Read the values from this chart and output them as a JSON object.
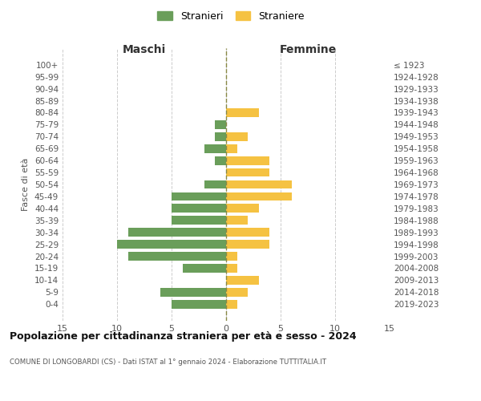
{
  "age_groups": [
    "100+",
    "95-99",
    "90-94",
    "85-89",
    "80-84",
    "75-79",
    "70-74",
    "65-69",
    "60-64",
    "55-59",
    "50-54",
    "45-49",
    "40-44",
    "35-39",
    "30-34",
    "25-29",
    "20-24",
    "15-19",
    "10-14",
    "5-9",
    "0-4"
  ],
  "birth_years": [
    "≤ 1923",
    "1924-1928",
    "1929-1933",
    "1934-1938",
    "1939-1943",
    "1944-1948",
    "1949-1953",
    "1954-1958",
    "1959-1963",
    "1964-1968",
    "1969-1973",
    "1974-1978",
    "1979-1983",
    "1984-1988",
    "1989-1993",
    "1994-1998",
    "1999-2003",
    "2004-2008",
    "2009-2013",
    "2014-2018",
    "2019-2023"
  ],
  "males": [
    0,
    0,
    0,
    0,
    0,
    1,
    1,
    2,
    1,
    0,
    2,
    5,
    5,
    5,
    9,
    10,
    9,
    4,
    0,
    6,
    5
  ],
  "females": [
    0,
    0,
    0,
    0,
    3,
    0,
    2,
    1,
    4,
    4,
    6,
    6,
    3,
    2,
    4,
    4,
    1,
    1,
    3,
    2,
    1
  ],
  "male_color": "#6a9e5a",
  "female_color": "#f5c242",
  "background_color": "#ffffff",
  "grid_color": "#cccccc",
  "title": "Popolazione per cittadinanza straniera per età e sesso - 2024",
  "subtitle": "COMUNE DI LONGOBARDI (CS) - Dati ISTAT al 1° gennaio 2024 - Elaborazione TUTTITALIA.IT",
  "ylabel_left": "Fasce di età",
  "xlabel_left": "Maschi",
  "xlabel_right": "Femmine",
  "legend_stranieri": "Stranieri",
  "legend_straniere": "Straniere",
  "xlim": 15
}
